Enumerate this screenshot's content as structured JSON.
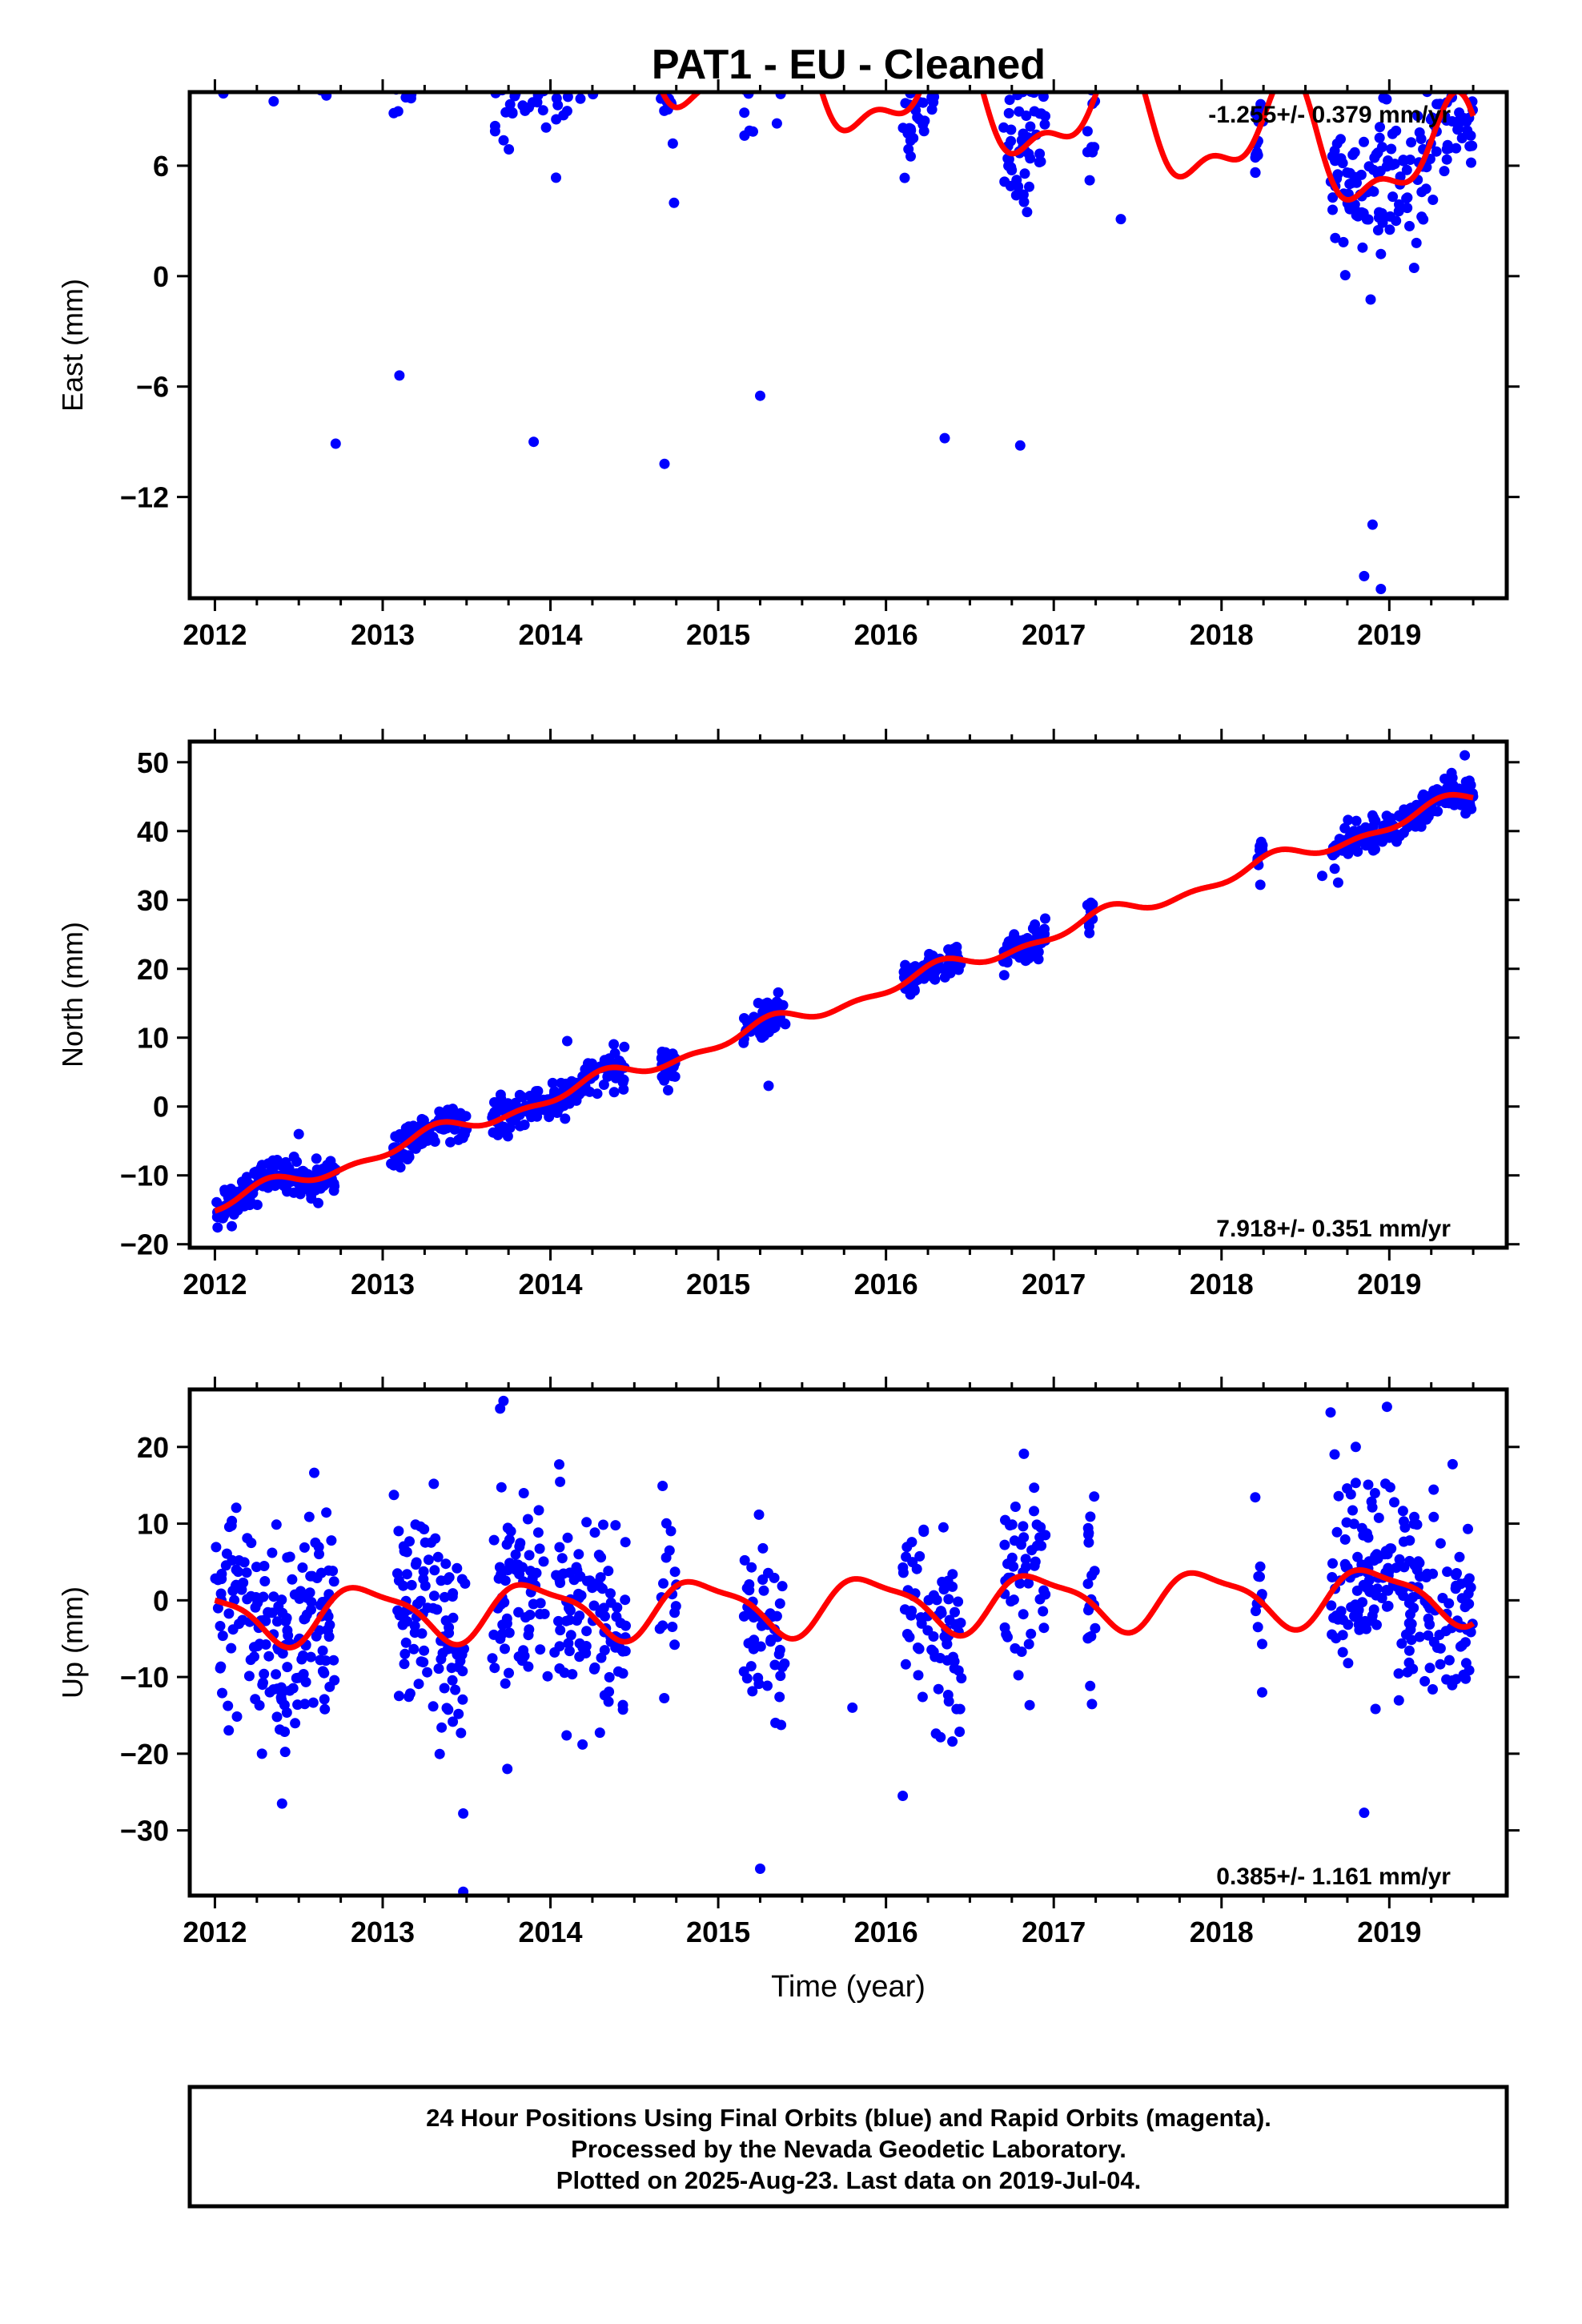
{
  "title": "PAT1  - EU - Cleaned",
  "footer": {
    "line1": "24 Hour Positions Using Final Orbits (blue) and Rapid Orbits (magenta).",
    "line2": "Processed by the Nevada Geodetic Laboratory.",
    "line3": "Plotted on 2025-Aug-23. Last data on 2019-Jul-04."
  },
  "chart_data": [
    {
      "type": "scatter",
      "ylabel": "East (mm)",
      "xlabel": "",
      "xlim": [
        2011.85,
        2019.7
      ],
      "ylim": [
        -17.5,
        10
      ],
      "xticks": [
        2012,
        2013,
        2014,
        2015,
        2016,
        2017,
        2018,
        2019
      ],
      "yticks": [
        6,
        0,
        -6,
        -12
      ],
      "rate": "-1.255+/- 0.379 mm/yr",
      "rate_position": "top-right",
      "colors": {
        "points": "#0000ff",
        "fit": "#ff0000"
      },
      "model": {
        "offset": 15.3,
        "trend": -1.255,
        "amp1": 2.8,
        "amp2": 1.3,
        "phase1": 0.13,
        "phase2": 0.3
      },
      "observation_windows": [
        [
          2012.0,
          2012.72
        ],
        [
          2013.05,
          2013.5
        ],
        [
          2013.65,
          2014.45
        ],
        [
          2014.65,
          2014.75
        ],
        [
          2015.15,
          2015.4
        ],
        [
          2016.1,
          2016.45
        ],
        [
          2016.7,
          2016.95
        ],
        [
          2017.2,
          2017.25
        ],
        [
          2018.2,
          2018.25
        ],
        [
          2018.65,
          2019.5
        ]
      ],
      "point_count": 880,
      "noise_mm": 1.8,
      "outliers": [
        [
          2012.35,
          9.5
        ],
        [
          2012.72,
          -9.1
        ],
        [
          2013.1,
          -5.4
        ],
        [
          2013.9,
          -9.0
        ],
        [
          2014.68,
          -10.2
        ],
        [
          2016.35,
          -8.8
        ],
        [
          2016.8,
          -9.2
        ],
        [
          2018.85,
          -16.3
        ],
        [
          2018.95,
          -17.0
        ],
        [
          2018.9,
          -13.5
        ],
        [
          2018.95,
          1.2
        ],
        [
          2017.4,
          3.1
        ],
        [
          2015.35,
          8.3
        ],
        [
          2015.25,
          -6.5
        ]
      ]
    },
    {
      "type": "scatter",
      "ylabel": "North (mm)",
      "xlabel": "",
      "xlim": [
        2011.85,
        2019.7
      ],
      "ylim": [
        -20.5,
        53
      ],
      "xticks": [
        2012,
        2013,
        2014,
        2015,
        2016,
        2017,
        2018,
        2019
      ],
      "yticks": [
        50,
        40,
        30,
        20,
        10,
        0,
        -10,
        -20
      ],
      "rate": "7.918+/- 0.351 mm/yr",
      "rate_position": "bottom-right",
      "colors": {
        "points": "#0000ff",
        "fit": "#ff0000"
      },
      "model": {
        "offset": -14.5,
        "trend": 7.918,
        "amp1": 1.0,
        "amp2": 0.6,
        "phase1": 0.05,
        "phase2": 0.2
      },
      "observation_windows": [
        [
          2012.0,
          2012.72
        ],
        [
          2013.05,
          2013.5
        ],
        [
          2013.65,
          2014.45
        ],
        [
          2014.65,
          2014.75
        ],
        [
          2015.15,
          2015.4
        ],
        [
          2016.1,
          2016.45
        ],
        [
          2016.7,
          2016.95
        ],
        [
          2017.2,
          2017.25
        ],
        [
          2018.2,
          2018.25
        ],
        [
          2018.65,
          2019.5
        ]
      ],
      "point_count": 880,
      "noise_mm": 1.3,
      "outliers": [
        [
          2012.5,
          -4.0
        ],
        [
          2014.1,
          9.5
        ],
        [
          2015.3,
          3.0
        ],
        [
          2018.6,
          33.5
        ],
        [
          2019.45,
          51.0
        ]
      ]
    },
    {
      "type": "scatter",
      "ylabel": "Up (mm)",
      "xlabel": "Time (year)",
      "xlim": [
        2011.85,
        2019.7
      ],
      "ylim": [
        -38.5,
        27.5
      ],
      "xticks": [
        2012,
        2013,
        2014,
        2015,
        2016,
        2017,
        2018,
        2019
      ],
      "yticks": [
        20,
        10,
        0,
        -10,
        -20,
        -30
      ],
      "rate": "0.385+/- 1.161 mm/yr",
      "rate_position": "bottom-right",
      "colors": {
        "points": "#0000ff",
        "fit": "#ff0000"
      },
      "model": {
        "offset": -2.0,
        "trend": 0.385,
        "amp1": 3.5,
        "amp2": 1.0,
        "phase1": 0.66,
        "phase2": 0.1
      },
      "observation_windows": [
        [
          2012.0,
          2012.72
        ],
        [
          2013.05,
          2013.5
        ],
        [
          2013.65,
          2014.45
        ],
        [
          2014.65,
          2014.75
        ],
        [
          2015.15,
          2015.4
        ],
        [
          2016.1,
          2016.45
        ],
        [
          2016.7,
          2016.95
        ],
        [
          2017.2,
          2017.25
        ],
        [
          2018.2,
          2018.25
        ],
        [
          2018.65,
          2019.5
        ]
      ],
      "point_count": 880,
      "noise_mm": 6.5,
      "outliers": [
        [
          2012.4,
          -26.5
        ],
        [
          2013.48,
          -27.8
        ],
        [
          2013.48,
          -38.0
        ],
        [
          2013.72,
          26.0
        ],
        [
          2013.7,
          25.0
        ],
        [
          2015.25,
          -35.0
        ],
        [
          2016.1,
          -25.5
        ],
        [
          2018.65,
          24.5
        ],
        [
          2018.85,
          -27.7
        ],
        [
          2018.8,
          20.0
        ],
        [
          2015.8,
          -14.0
        ]
      ]
    }
  ]
}
